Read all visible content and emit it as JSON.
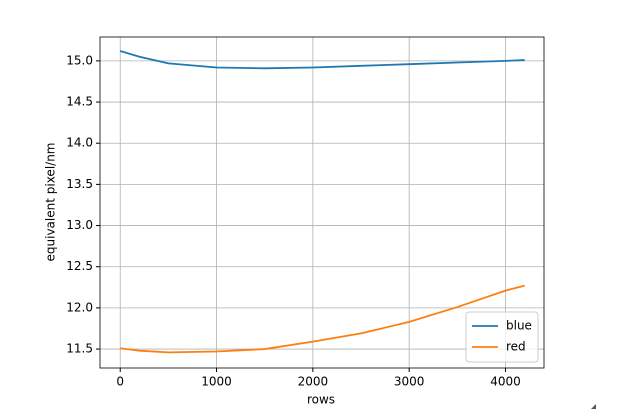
{
  "chart_data": {
    "type": "line",
    "xlabel": "rows",
    "ylabel": "equivalent pixel/nm",
    "x": [
      0,
      200,
      500,
      1000,
      1500,
      2000,
      2500,
      3000,
      3500,
      4000,
      4200
    ],
    "series": [
      {
        "name": "blue",
        "color": "#1f77b4",
        "values": [
          15.12,
          15.05,
          14.97,
          14.92,
          14.91,
          14.92,
          14.94,
          14.96,
          14.98,
          15.0,
          15.01
        ]
      },
      {
        "name": "red",
        "color": "#ff7f0e",
        "values": [
          11.51,
          11.48,
          11.46,
          11.47,
          11.5,
          11.59,
          11.69,
          11.83,
          12.01,
          12.21,
          12.27
        ]
      }
    ],
    "xlim": [
      -210,
      4400
    ],
    "xticks": [
      0,
      1000,
      2000,
      3000,
      4000
    ],
    "ylim": [
      11.27,
      15.29
    ],
    "yticks": [
      {
        "value": 11.5,
        "label": "11.5"
      },
      {
        "value": 12,
        "label": "12.0"
      },
      {
        "value": 12.5,
        "label": "12.5"
      },
      {
        "value": 13,
        "label": "13.0"
      },
      {
        "value": 13.5,
        "label": "13.5"
      },
      {
        "value": 14,
        "label": "14.0"
      },
      {
        "value": 14.5,
        "label": "14.5"
      },
      {
        "value": 15,
        "label": "15.0"
      }
    ],
    "grid": true,
    "legend": "lower right"
  }
}
